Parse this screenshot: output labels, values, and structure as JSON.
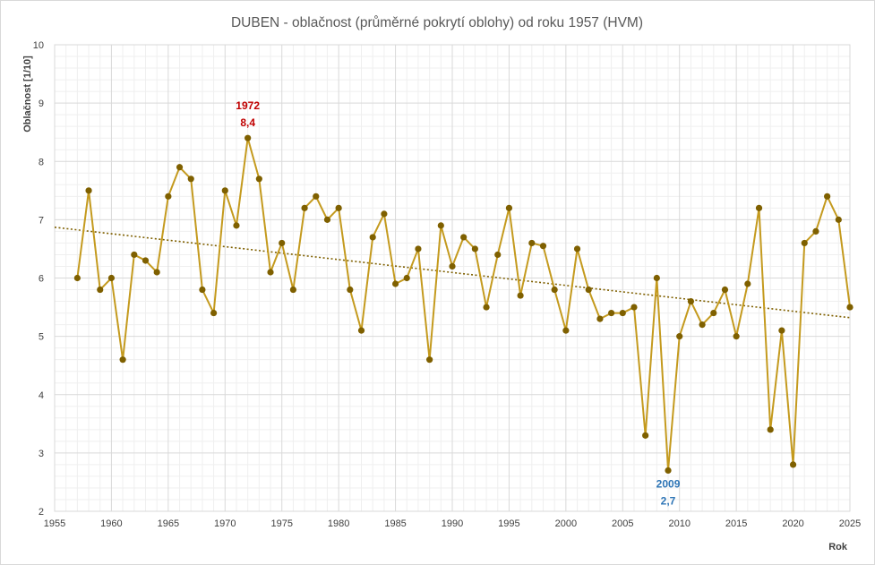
{
  "chart_data": {
    "type": "line",
    "title": "DUBEN - oblačnost (průměrné pokrytí oblohy) od roku 1957 (HVM)",
    "xlabel": "Rok",
    "ylabel": "Oblačnost  [1/10]",
    "xlim": [
      1955,
      2025
    ],
    "ylim": [
      2,
      10
    ],
    "x_ticks": [
      1955,
      1960,
      1965,
      1970,
      1975,
      1980,
      1985,
      1990,
      1995,
      2000,
      2005,
      2010,
      2015,
      2020,
      2025
    ],
    "y_ticks": [
      2,
      3,
      4,
      5,
      6,
      7,
      8,
      9,
      10
    ],
    "grid": true,
    "series": [
      {
        "color": "#c49a1e",
        "marker_color": "#7f6000",
        "x": [
          1957,
          1958,
          1959,
          1960,
          1961,
          1962,
          1963,
          1964,
          1965,
          1966,
          1967,
          1968,
          1969,
          1970,
          1971,
          1972,
          1973,
          1974,
          1975,
          1976,
          1977,
          1978,
          1979,
          1980,
          1981,
          1982,
          1983,
          1984,
          1985,
          1986,
          1987,
          1988,
          1989,
          1990,
          1991,
          1992,
          1993,
          1994,
          1995,
          1996,
          1997,
          1998,
          1999,
          2000,
          2001,
          2002,
          2003,
          2004,
          2005,
          2006,
          2007,
          2008,
          2009,
          2010,
          2011,
          2012,
          2013,
          2014,
          2015,
          2016,
          2017,
          2018,
          2019,
          2020,
          2021,
          2022,
          2023,
          2024,
          2025
        ],
        "y": [
          6.0,
          7.5,
          5.8,
          6.0,
          4.6,
          6.4,
          6.3,
          6.1,
          7.4,
          7.9,
          7.7,
          5.8,
          5.4,
          7.5,
          6.9,
          8.4,
          7.7,
          6.1,
          6.6,
          5.8,
          7.2,
          7.4,
          7.0,
          7.2,
          5.8,
          5.1,
          6.7,
          7.1,
          5.9,
          6.0,
          6.5,
          4.6,
          6.9,
          6.2,
          6.7,
          6.5,
          5.5,
          6.4,
          7.2,
          5.7,
          6.6,
          6.55,
          5.8,
          5.1,
          6.5,
          5.8,
          5.3,
          5.4,
          5.4,
          5.5,
          3.3,
          6.0,
          2.7,
          5.0,
          5.6,
          5.2,
          5.4,
          5.8,
          5.0,
          5.9,
          7.2,
          3.4,
          5.1,
          2.8,
          6.6,
          6.8,
          7.4,
          7.0,
          5.5
        ]
      }
    ],
    "trendline": {
      "color": "#7f6000",
      "x": [
        1955,
        2025
      ],
      "y": [
        6.87,
        5.32
      ]
    },
    "annotations": [
      {
        "year": "1972",
        "value": "8,4",
        "x": 1972,
        "y": 8.4,
        "color": "#c00000",
        "position": "above"
      },
      {
        "year": "2009",
        "value": "2,7",
        "x": 2009,
        "y": 2.7,
        "color": "#2e75b6",
        "position": "below"
      }
    ]
  }
}
